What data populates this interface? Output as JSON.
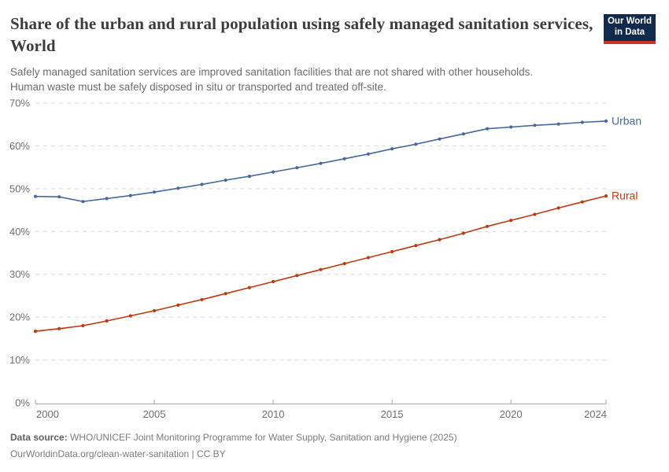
{
  "header": {
    "title": "Share of the urban and rural population using safely managed sanitation services, World",
    "subtitle_lines": [
      "Safely managed sanitation services are improved sanitation facilities that are not shared with other households.",
      "Human waste must be safely disposed in situ or transported and treated off-site."
    ]
  },
  "logo": {
    "line1": "Our World",
    "line2": "in Data",
    "bg_color": "#12294e",
    "stripe_color": "#d12f2f"
  },
  "chart_data": {
    "type": "line",
    "title": "Share of the urban and rural population using safely managed sanitation services, World",
    "x": [
      2000,
      2001,
      2002,
      2003,
      2004,
      2005,
      2006,
      2007,
      2008,
      2009,
      2010,
      2011,
      2012,
      2013,
      2014,
      2015,
      2016,
      2017,
      2018,
      2019,
      2020,
      2021,
      2022,
      2023,
      2024
    ],
    "series": [
      {
        "name": "Urban",
        "color": "#4669a0",
        "values": [
          48.2,
          48.1,
          47.0,
          47.7,
          48.4,
          49.2,
          50.1,
          51.0,
          52.0,
          52.9,
          53.9,
          54.9,
          55.9,
          57.0,
          58.1,
          59.3,
          60.4,
          61.6,
          62.8,
          64.0,
          64.4,
          64.8,
          65.1,
          65.5,
          65.8
        ]
      },
      {
        "name": "Rural",
        "color": "#bb3a0e",
        "values": [
          16.7,
          17.3,
          18.0,
          19.1,
          20.3,
          21.5,
          22.8,
          24.1,
          25.5,
          26.9,
          28.3,
          29.7,
          31.1,
          32.5,
          33.9,
          35.3,
          36.7,
          38.1,
          39.6,
          41.2,
          42.6,
          44.0,
          45.5,
          46.9,
          48.3
        ]
      }
    ],
    "ylim": [
      0,
      70
    ],
    "yticks": [
      0,
      10,
      20,
      30,
      40,
      50,
      60,
      70
    ],
    "ytick_suffix": "%",
    "xticks": [
      2000,
      2005,
      2010,
      2015,
      2020,
      2024
    ],
    "grid": "horizontal-dashed",
    "legend": "line-end-labels",
    "grid_color": "#dcdcdc",
    "axis_color": "#a7a7a7",
    "tick_label_color": "#6f6f6f"
  },
  "footer": {
    "source_label": "Data source:",
    "source_text": " WHO/UNICEF Joint Monitoring Programme for Water Supply, Sanitation and Hygiene (2025)",
    "license_line": "OurWorldinData.org/clean-water-sanitation | CC BY"
  }
}
